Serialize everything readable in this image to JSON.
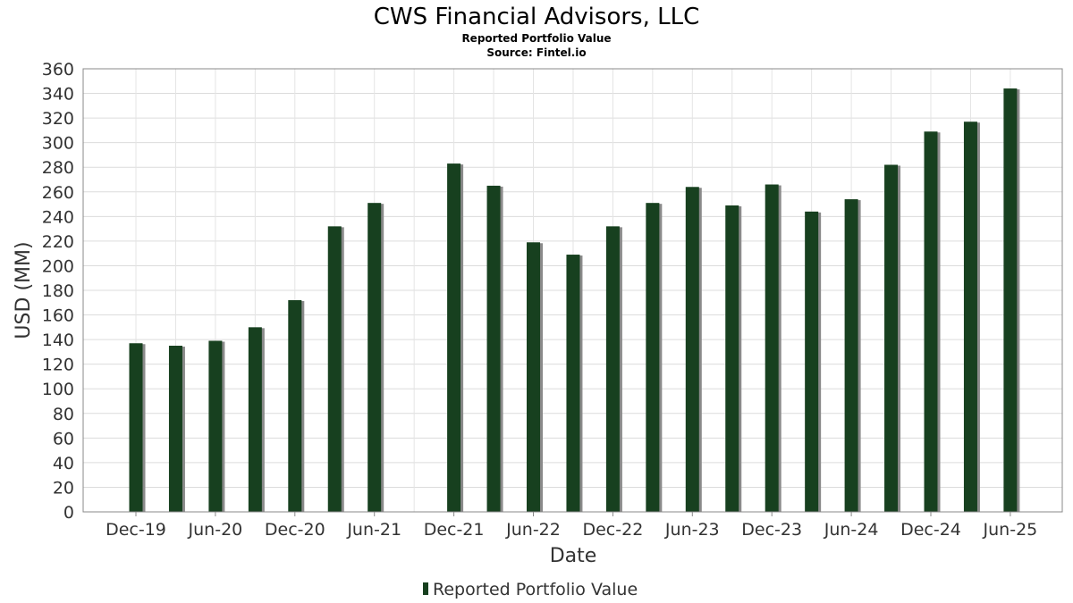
{
  "chart_data": {
    "type": "bar",
    "title": "CWS Financial Advisors, LLC",
    "subtitle": "Reported Portfolio Value",
    "source": "Source: Fintel.io",
    "xlabel": "Date",
    "ylabel": "USD (MM)",
    "ylim": [
      0,
      360
    ],
    "ytick_step": 20,
    "grid": true,
    "legend_position": "bottom-center",
    "x_tick_labels": [
      "Dec-19",
      "Jun-20",
      "Dec-20",
      "Jun-21",
      "Dec-21",
      "Jun-22",
      "Dec-22",
      "Jun-23",
      "Dec-23",
      "Jun-24",
      "Dec-24",
      "Jun-25"
    ],
    "categories": [
      "Dec-19",
      "Mar-20",
      "Jun-20",
      "Sep-20",
      "Dec-20",
      "Mar-21",
      "Jun-21",
      "Sep-21",
      "Dec-21",
      "Mar-22",
      "Jun-22",
      "Sep-22",
      "Dec-22",
      "Mar-23",
      "Jun-23",
      "Sep-23",
      "Dec-23",
      "Mar-24",
      "Jun-24",
      "Sep-24",
      "Dec-24",
      "Mar-25",
      "Jun-25"
    ],
    "series": [
      {
        "name": "Reported Portfolio Value",
        "color": "#17401f",
        "values": [
          137,
          135,
          139,
          150,
          172,
          232,
          251,
          null,
          283,
          265,
          219,
          209,
          232,
          251,
          264,
          249,
          266,
          244,
          254,
          282,
          309,
          317,
          344
        ]
      }
    ]
  }
}
